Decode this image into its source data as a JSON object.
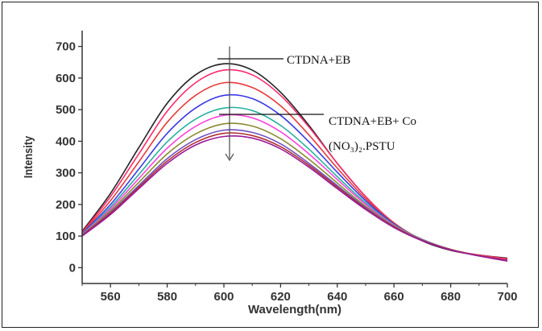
{
  "chart_data": {
    "type": "line",
    "xlabel": "Wavelength(nm)",
    "ylabel": "Intensity",
    "xlim": [
      550,
      700
    ],
    "ylim": [
      -50,
      750
    ],
    "x_ticks": [
      560,
      580,
      600,
      620,
      640,
      660,
      680,
      700
    ],
    "y_ticks": [
      0,
      100,
      200,
      300,
      400,
      500,
      600,
      700
    ],
    "x": [
      550,
      560,
      570,
      580,
      590,
      600,
      610,
      620,
      630,
      640,
      650,
      660,
      670,
      680,
      690,
      700
    ],
    "series": [
      {
        "name": "CTDNA+EB",
        "color": "#222222",
        "values": [
          115,
          235,
          380,
          520,
          610,
          645,
          625,
          555,
          450,
          330,
          225,
          140,
          85,
          55,
          40,
          30
        ]
      },
      {
        "color": "#ff2a6d",
        "values": [
          112,
          225,
          360,
          495,
          585,
          625,
          610,
          545,
          445,
          330,
          225,
          142,
          88,
          56,
          40,
          28
        ]
      },
      {
        "color": "#e83a3a",
        "values": [
          110,
          212,
          335,
          460,
          545,
          585,
          570,
          512,
          420,
          315,
          218,
          140,
          88,
          56,
          38,
          25
        ]
      },
      {
        "color": "#3a3ae8",
        "values": [
          108,
          200,
          312,
          425,
          505,
          545,
          535,
          482,
          398,
          302,
          212,
          138,
          88,
          57,
          38,
          23
        ]
      },
      {
        "color": "#27b0a0",
        "values": [
          106,
          192,
          295,
          398,
          470,
          505,
          497,
          450,
          375,
          288,
          205,
          136,
          90,
          58,
          38,
          22
        ]
      },
      {
        "color": "#ff44dd",
        "values": [
          105,
          186,
          282,
          378,
          447,
          482,
          474,
          430,
          360,
          279,
          200,
          134,
          89,
          58,
          38,
          21
        ]
      },
      {
        "color": "#8a8a30",
        "values": [
          104,
          180,
          270,
          360,
          423,
          455,
          448,
          408,
          343,
          268,
          194,
          132,
          88,
          58,
          38,
          22
        ]
      },
      {
        "color": "#7050c0",
        "values": [
          103,
          175,
          260,
          345,
          405,
          435,
          428,
          392,
          330,
          260,
          190,
          130,
          87,
          57,
          38,
          23
        ]
      },
      {
        "color": "#b03030",
        "values": [
          102,
          172,
          255,
          337,
          396,
          425,
          418,
          383,
          324,
          255,
          187,
          129,
          86,
          57,
          38,
          22
        ]
      },
      {
        "name": "CTDNA+EB+ Co (NO₃)₂.PSTU",
        "color": "#9a1a9a",
        "values": [
          100,
          168,
          250,
          330,
          388,
          415,
          410,
          376,
          318,
          250,
          184,
          127,
          85,
          56,
          37,
          21
        ]
      }
    ],
    "annotations": [
      {
        "text": "CTDNA+EB"
      },
      {
        "line1": "CTDNA+EB+ Co",
        "line2": "(NO₃)₂.PSTU"
      }
    ],
    "arrow": {
      "x": 602,
      "y_from": 700,
      "y_to": 340
    }
  }
}
